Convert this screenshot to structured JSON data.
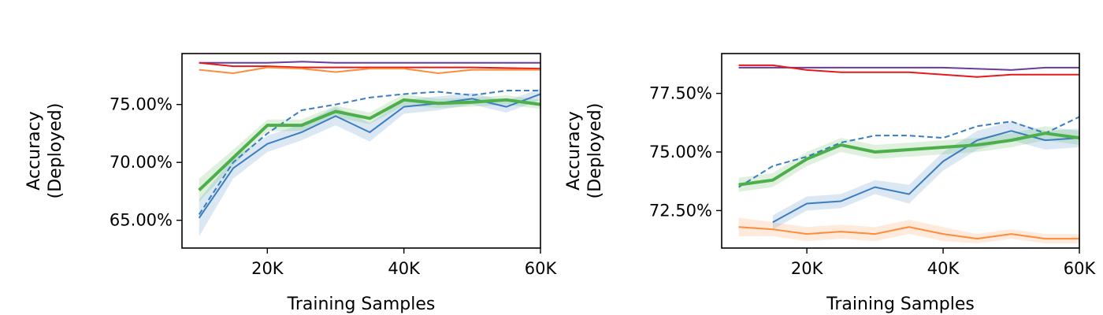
{
  "chart_data": [
    {
      "type": "line",
      "xlabel": "Training Samples",
      "ylabel": "Accuracy (Deployed)",
      "ylabel_lines": [
        "Accuracy",
        "(Deployed)"
      ],
      "xlim": [
        7500,
        60000
      ],
      "ylim": [
        62.6,
        79.4
      ],
      "x_ticks": [
        20000,
        40000,
        60000
      ],
      "x_tick_labels": [
        "20K",
        "40K",
        "60K"
      ],
      "y_ticks": [
        65,
        70,
        75
      ],
      "y_tick_labels": [
        "65.00%",
        "70.00%",
        "75.00%"
      ],
      "grid": false,
      "series": [
        {
          "color": "#6a3d9a",
          "width": 2,
          "dash": "",
          "x": [
            10000,
            20000,
            25000,
            30000,
            40000,
            50000,
            60000
          ],
          "y": [
            78.6,
            78.6,
            78.7,
            78.6,
            78.6,
            78.6,
            78.6
          ]
        },
        {
          "color": "#e41a1c",
          "width": 2,
          "dash": "",
          "x": [
            10000,
            15000,
            20000,
            25000,
            30000,
            40000,
            50000,
            60000
          ],
          "y": [
            78.6,
            78.3,
            78.3,
            78.2,
            78.2,
            78.2,
            78.2,
            78.1
          ]
        },
        {
          "color": "#fd8d3c",
          "width": 2,
          "dash": "",
          "x": [
            10000,
            15000,
            20000,
            25000,
            30000,
            35000,
            40000,
            45000,
            50000,
            55000,
            60000
          ],
          "y": [
            78.0,
            77.7,
            78.2,
            78.1,
            77.8,
            78.1,
            78.1,
            77.7,
            78.0,
            78.0,
            78.0
          ]
        },
        {
          "color": "#3a7dc1",
          "width": 2,
          "dash": "",
          "band": [
            1.6,
            0.9,
            0.7,
            0.7,
            0.8,
            0.8,
            0.6,
            0.6,
            0.5,
            0.5,
            0.5
          ],
          "x": [
            10000,
            15000,
            20000,
            25000,
            30000,
            35000,
            40000,
            45000,
            50000,
            55000,
            60000
          ],
          "y": [
            65.2,
            69.5,
            71.6,
            72.6,
            74.0,
            72.6,
            74.8,
            75.1,
            75.5,
            74.8,
            75.9
          ]
        },
        {
          "color": "#3a7dc1",
          "width": 2,
          "dash": "7,4",
          "x": [
            10000,
            15000,
            20000,
            25000,
            30000,
            35000,
            40000,
            45000,
            50000,
            55000,
            60000
          ],
          "y": [
            65.5,
            70.0,
            72.5,
            74.5,
            75.0,
            75.6,
            75.9,
            76.1,
            75.8,
            76.2,
            76.2
          ]
        },
        {
          "color": "#4daf4a",
          "width": 4,
          "dash": "",
          "band": [
            1.0,
            0.7,
            0.5,
            0.5,
            0.5,
            0.5,
            0.5,
            0.4,
            0.4,
            0.4,
            0.4
          ],
          "x": [
            10000,
            15000,
            20000,
            25000,
            30000,
            35000,
            40000,
            45000,
            50000,
            55000,
            60000
          ],
          "y": [
            67.6,
            70.4,
            73.2,
            73.2,
            74.4,
            73.8,
            75.4,
            75.1,
            75.2,
            75.4,
            75.0
          ]
        }
      ]
    },
    {
      "type": "line",
      "xlabel": "Training Samples",
      "ylabel": "Accuracy (Deployed)",
      "ylabel_lines": [
        "Accuracy",
        "(Deployed)"
      ],
      "xlim": [
        7500,
        60000
      ],
      "ylim": [
        70.9,
        79.2
      ],
      "x_ticks": [
        20000,
        40000,
        60000
      ],
      "x_tick_labels": [
        "20K",
        "40K",
        "60K"
      ],
      "y_ticks": [
        72.5,
        75,
        77.5
      ],
      "y_tick_labels": [
        "72.50%",
        "75.00%",
        "77.50%"
      ],
      "grid": false,
      "series": [
        {
          "color": "#6a3d9a",
          "width": 2,
          "dash": "",
          "x": [
            10000,
            20000,
            30000,
            40000,
            50000,
            55000,
            60000
          ],
          "y": [
            78.6,
            78.6,
            78.6,
            78.6,
            78.5,
            78.6,
            78.6
          ]
        },
        {
          "color": "#e41a1c",
          "width": 2,
          "dash": "",
          "x": [
            10000,
            15000,
            20000,
            25000,
            30000,
            35000,
            40000,
            45000,
            50000,
            55000,
            60000
          ],
          "y": [
            78.7,
            78.7,
            78.5,
            78.4,
            78.4,
            78.4,
            78.3,
            78.2,
            78.3,
            78.3,
            78.3
          ]
        },
        {
          "color": "#fd8d3c",
          "width": 2,
          "dash": "",
          "band": [
            0.4,
            0.3,
            0.3,
            0.3,
            0.3,
            0.3,
            0.3,
            0.2,
            0.2,
            0.2,
            0.2
          ],
          "x": [
            10000,
            15000,
            20000,
            25000,
            30000,
            35000,
            40000,
            45000,
            50000,
            55000,
            60000
          ],
          "y": [
            71.8,
            71.7,
            71.5,
            71.6,
            71.5,
            71.8,
            71.5,
            71.3,
            71.5,
            71.3,
            71.3
          ]
        },
        {
          "color": "#3a7dc1",
          "width": 2,
          "dash": "",
          "band": [
            0.3,
            0.3,
            0.3,
            0.3,
            0.4,
            0.4,
            0.4,
            0.4,
            0.4,
            0.4
          ],
          "x": [
            15000,
            20000,
            25000,
            30000,
            35000,
            40000,
            45000,
            50000,
            55000,
            60000
          ],
          "y": [
            72.0,
            72.8,
            72.9,
            73.5,
            73.2,
            74.6,
            75.5,
            75.9,
            75.5,
            75.6
          ]
        },
        {
          "color": "#3a7dc1",
          "width": 2,
          "dash": "7,4",
          "x": [
            10000,
            15000,
            20000,
            25000,
            30000,
            35000,
            40000,
            45000,
            50000,
            55000,
            60000
          ],
          "y": [
            73.5,
            74.4,
            74.8,
            75.4,
            75.7,
            75.7,
            75.6,
            76.1,
            76.3,
            75.8,
            76.5
          ]
        },
        {
          "color": "#4daf4a",
          "width": 4,
          "dash": "",
          "band": [
            0.3,
            0.3,
            0.3,
            0.3,
            0.3,
            0.3,
            0.3,
            0.3,
            0.3,
            0.3,
            0.3
          ],
          "x": [
            10000,
            15000,
            20000,
            25000,
            30000,
            35000,
            40000,
            45000,
            50000,
            55000,
            60000
          ],
          "y": [
            73.6,
            73.8,
            74.7,
            75.3,
            75.0,
            75.1,
            75.2,
            75.3,
            75.5,
            75.8,
            75.6
          ]
        }
      ]
    }
  ]
}
